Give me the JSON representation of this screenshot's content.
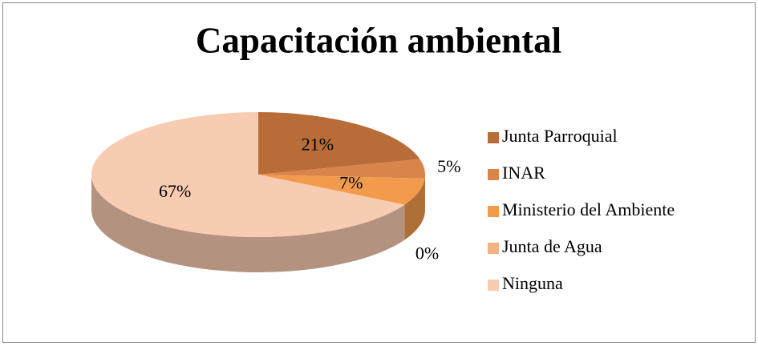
{
  "chart_data": {
    "type": "pie3d",
    "title": "Capacitación ambiental",
    "categories": [
      "Junta Parroquial",
      "INAR",
      "Ministerio del Ambiente",
      "Junta de Agua",
      "Ninguna"
    ],
    "values": [
      21,
      5,
      7,
      0,
      67
    ],
    "value_labels": [
      "21%",
      "5%",
      "7%",
      "0%",
      "67%"
    ],
    "colors": [
      "#b86d38",
      "#d8844a",
      "#f29b4c",
      "#f4b183",
      "#f8ccb2"
    ],
    "legend": "right"
  }
}
